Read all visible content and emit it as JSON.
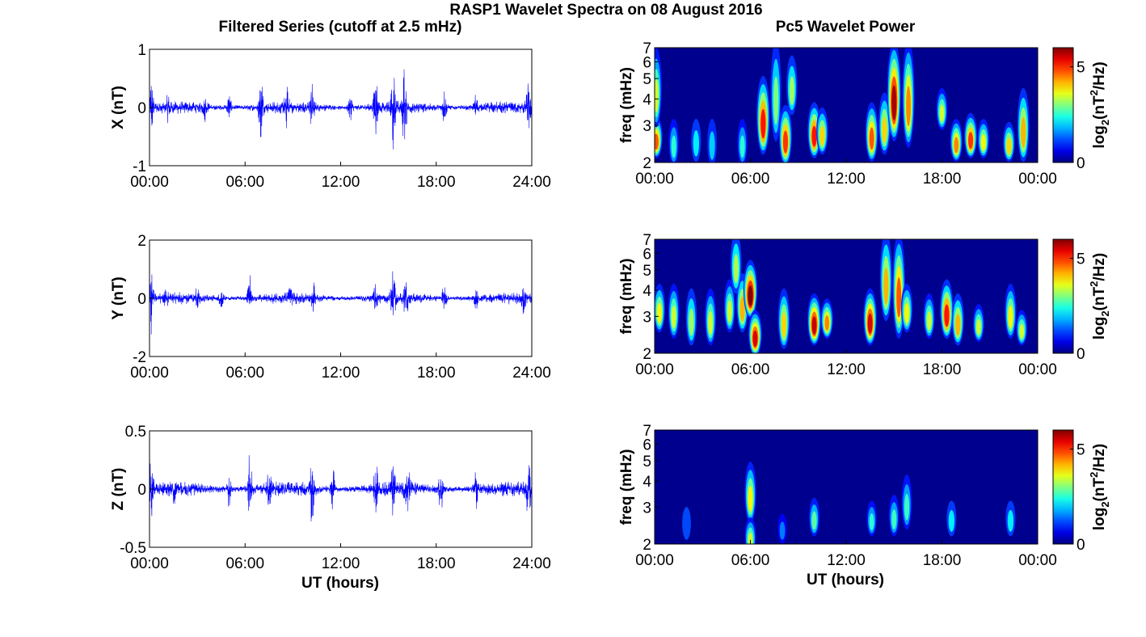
{
  "figure": {
    "title": "RASP1 Wavelet Spectra on 08 August 2016",
    "left_column_title": "Filtered Series (cutoff at 2.5 mHz)",
    "right_column_title": "Pc5 Wavelet Power",
    "xlabel": "UT (hours)"
  },
  "colors": {
    "trace": "#0000ff",
    "spectrogram_background": "#00008f",
    "axis": "#000000"
  },
  "chart_data": [
    {
      "type": "line",
      "panel": "X series",
      "ylabel": "X (nT)",
      "ylim": [
        -1,
        1
      ],
      "yticks": [
        "1",
        "0",
        "-1"
      ],
      "xlim": [
        0,
        24
      ],
      "xticks": [
        "00:00",
        "06:00",
        "12:00",
        "18:00",
        "24:00"
      ],
      "baseline_amplitude": 0.1,
      "bursts": [
        {
          "t": 0.1,
          "amp": 0.55
        },
        {
          "t": 1.2,
          "amp": 0.2
        },
        {
          "t": 3.5,
          "amp": 0.18
        },
        {
          "t": 5.0,
          "amp": 0.22
        },
        {
          "t": 7.0,
          "amp": 0.6
        },
        {
          "t": 8.6,
          "amp": 0.3
        },
        {
          "t": 10.2,
          "amp": 0.35
        },
        {
          "t": 12.6,
          "amp": 0.25
        },
        {
          "t": 14.2,
          "amp": 0.55
        },
        {
          "t": 15.3,
          "amp": 0.65
        },
        {
          "t": 16.0,
          "amp": 0.7
        },
        {
          "t": 18.5,
          "amp": 0.3
        },
        {
          "t": 20.5,
          "amp": 0.2
        },
        {
          "t": 23.8,
          "amp": 0.45
        }
      ]
    },
    {
      "type": "line",
      "panel": "Y series",
      "ylabel": "Y (nT)",
      "ylim": [
        -2,
        2
      ],
      "yticks": [
        "2",
        "0",
        "-2"
      ],
      "xlim": [
        0,
        24
      ],
      "xticks": [
        "00:00",
        "06:00",
        "12:00",
        "18:00",
        "24:00"
      ],
      "baseline_amplitude": 0.18,
      "bursts": [
        {
          "t": 0.1,
          "amp": 1.1
        },
        {
          "t": 1.0,
          "amp": 0.35
        },
        {
          "t": 3.0,
          "amp": 0.3
        },
        {
          "t": 4.5,
          "amp": 0.35
        },
        {
          "t": 6.3,
          "amp": 0.8
        },
        {
          "t": 8.8,
          "amp": 0.3
        },
        {
          "t": 10.3,
          "amp": 0.45
        },
        {
          "t": 14.2,
          "amp": 0.5
        },
        {
          "t": 15.3,
          "amp": 0.9
        },
        {
          "t": 16.1,
          "amp": 0.7
        },
        {
          "t": 18.5,
          "amp": 0.5
        },
        {
          "t": 20.5,
          "amp": 0.3
        },
        {
          "t": 23.5,
          "amp": 0.4
        }
      ]
    },
    {
      "type": "line",
      "panel": "Z series",
      "ylabel": "Z (nT)",
      "ylim": [
        -0.5,
        0.5
      ],
      "yticks": [
        "0.5",
        "0",
        "-0.5"
      ],
      "xlim": [
        0,
        24
      ],
      "xticks": [
        "00:00",
        "06:00",
        "12:00",
        "18:00",
        "24:00"
      ],
      "baseline_amplitude": 0.06,
      "bursts": [
        {
          "t": 0.1,
          "amp": 0.33
        },
        {
          "t": 1.5,
          "amp": 0.1
        },
        {
          "t": 5.0,
          "amp": 0.15
        },
        {
          "t": 6.3,
          "amp": 0.32
        },
        {
          "t": 7.5,
          "amp": 0.2
        },
        {
          "t": 10.2,
          "amp": 0.3
        },
        {
          "t": 11.5,
          "amp": 0.18
        },
        {
          "t": 14.2,
          "amp": 0.22
        },
        {
          "t": 15.3,
          "amp": 0.22
        },
        {
          "t": 16.2,
          "amp": 0.25
        },
        {
          "t": 18.3,
          "amp": 0.2
        },
        {
          "t": 20.5,
          "amp": 0.15
        },
        {
          "t": 23.8,
          "amp": 0.3
        }
      ]
    },
    {
      "type": "heatmap",
      "panel": "X wavelet power",
      "ylabel": "freq (mHz)",
      "y_scale": "log",
      "ylim": [
        2,
        7
      ],
      "yticks": [
        "2",
        "3",
        "4",
        "5",
        "6",
        "7"
      ],
      "xlim": [
        0,
        24
      ],
      "xticks": [
        "00:00",
        "06:00",
        "12:00",
        "18:00",
        "00:00"
      ],
      "colorbar_label": "log2(nT^2/Hz)",
      "color_range": [
        0,
        6
      ],
      "colorbar_ticks": [
        "0",
        "5"
      ],
      "blobs": [
        {
          "t": 0.1,
          "f": 2.5,
          "p": 4.8,
          "f_top": 3.1
        },
        {
          "t": 0.1,
          "f": 3.5,
          "p": 3.5,
          "f_top": 6.5
        },
        {
          "t": 1.2,
          "f": 2.3,
          "p": 2.5,
          "f_top": 3.0
        },
        {
          "t": 2.6,
          "f": 2.4,
          "p": 2.2,
          "f_top": 3.0
        },
        {
          "t": 3.6,
          "f": 2.3,
          "p": 2.0,
          "f_top": 3.0
        },
        {
          "t": 5.5,
          "f": 2.3,
          "p": 2.5,
          "f_top": 3.0
        },
        {
          "t": 6.8,
          "f": 2.6,
          "p": 5.2,
          "f_top": 4.8
        },
        {
          "t": 7.6,
          "f": 3.0,
          "p": 3.0,
          "f_top": 7.0
        },
        {
          "t": 8.2,
          "f": 2.3,
          "p": 5.0,
          "f_top": 3.5
        },
        {
          "t": 8.6,
          "f": 4.0,
          "p": 3.2,
          "f_top": 6.0
        },
        {
          "t": 10.0,
          "f": 2.5,
          "p": 5.2,
          "f_top": 3.6
        },
        {
          "t": 10.5,
          "f": 2.6,
          "p": 4.0,
          "f_top": 3.4
        },
        {
          "t": 13.6,
          "f": 2.4,
          "p": 4.8,
          "f_top": 3.6
        },
        {
          "t": 14.4,
          "f": 2.6,
          "p": 4.0,
          "f_top": 4.0
        },
        {
          "t": 15.0,
          "f": 3.0,
          "p": 5.8,
          "f_top": 7.0
        },
        {
          "t": 15.9,
          "f": 2.8,
          "p": 4.5,
          "f_top": 7.0
        },
        {
          "t": 18.0,
          "f": 3.4,
          "p": 3.5,
          "f_top": 4.2
        },
        {
          "t": 18.9,
          "f": 2.4,
          "p": 4.5,
          "f_top": 3.0
        },
        {
          "t": 19.8,
          "f": 2.5,
          "p": 5.0,
          "f_top": 3.2
        },
        {
          "t": 20.6,
          "f": 2.5,
          "p": 3.8,
          "f_top": 3.0
        },
        {
          "t": 22.2,
          "f": 2.4,
          "p": 4.0,
          "f_top": 2.9
        },
        {
          "t": 23.1,
          "f": 2.4,
          "p": 4.2,
          "f_top": 4.2
        }
      ]
    },
    {
      "type": "heatmap",
      "panel": "Y wavelet power",
      "ylabel": "freq (mHz)",
      "y_scale": "log",
      "ylim": [
        2,
        7
      ],
      "yticks": [
        "2",
        "3",
        "4",
        "5",
        "6",
        "7"
      ],
      "xlim": [
        0,
        24
      ],
      "xticks": [
        "00:00",
        "06:00",
        "12:00",
        "18:00",
        "00:00"
      ],
      "colorbar_label": "log2(nT^2/Hz)",
      "color_range": [
        0,
        6
      ],
      "colorbar_ticks": [
        "0",
        "5"
      ],
      "blobs": [
        {
          "t": 0.3,
          "f": 3.0,
          "p": 3.8,
          "f_top": 4.0
        },
        {
          "t": 1.2,
          "f": 2.8,
          "p": 3.5,
          "f_top": 4.0
        },
        {
          "t": 2.3,
          "f": 2.6,
          "p": 3.2,
          "f_top": 3.8
        },
        {
          "t": 3.5,
          "f": 2.6,
          "p": 3.5,
          "f_top": 3.8
        },
        {
          "t": 4.7,
          "f": 3.0,
          "p": 3.5,
          "f_top": 4.2
        },
        {
          "t": 5.5,
          "f": 3.0,
          "p": 4.2,
          "f_top": 4.5
        },
        {
          "t": 6.0,
          "f": 3.5,
          "p": 6.0,
          "f_top": 5.2
        },
        {
          "t": 6.3,
          "f": 2.3,
          "p": 5.5,
          "f_top": 3.0
        },
        {
          "t": 5.1,
          "f": 4.6,
          "p": 3.3,
          "f_top": 7.0
        },
        {
          "t": 8.1,
          "f": 2.5,
          "p": 4.0,
          "f_top": 3.8
        },
        {
          "t": 10.0,
          "f": 2.6,
          "p": 5.6,
          "f_top": 3.6
        },
        {
          "t": 10.8,
          "f": 2.8,
          "p": 4.5,
          "f_top": 3.4
        },
        {
          "t": 13.5,
          "f": 2.6,
          "p": 5.5,
          "f_top": 3.8
        },
        {
          "t": 14.5,
          "f": 3.4,
          "p": 4.2,
          "f_top": 7.0
        },
        {
          "t": 15.3,
          "f": 2.8,
          "p": 4.8,
          "f_top": 7.0
        },
        {
          "t": 15.8,
          "f": 3.0,
          "p": 3.8,
          "f_top": 4.0
        },
        {
          "t": 17.2,
          "f": 2.8,
          "p": 3.5,
          "f_top": 3.6
        },
        {
          "t": 18.3,
          "f": 2.8,
          "p": 5.2,
          "f_top": 4.2
        },
        {
          "t": 19.0,
          "f": 2.6,
          "p": 4.2,
          "f_top": 3.6
        },
        {
          "t": 20.3,
          "f": 2.7,
          "p": 3.5,
          "f_top": 3.2
        },
        {
          "t": 22.3,
          "f": 2.8,
          "p": 3.8,
          "f_top": 4.0
        },
        {
          "t": 23.0,
          "f": 2.6,
          "p": 3.5,
          "f_top": 3.0
        }
      ]
    },
    {
      "type": "heatmap",
      "panel": "Z wavelet power",
      "ylabel": "freq (mHz)",
      "y_scale": "log",
      "ylim": [
        2,
        7
      ],
      "yticks": [
        "2",
        "3",
        "4",
        "5",
        "6",
        "7"
      ],
      "xlim": [
        0,
        24
      ],
      "xticks": [
        "00:00",
        "06:00",
        "12:00",
        "18:00",
        "00:00"
      ],
      "colorbar_label": "log2(nT^2/Hz)",
      "color_range": [
        0,
        6
      ],
      "colorbar_ticks": [
        "0",
        "5"
      ],
      "blobs": [
        {
          "t": 6.0,
          "f": 3.0,
          "p": 3.8,
          "f_top": 4.6
        },
        {
          "t": 6.0,
          "f": 2.1,
          "p": 3.5,
          "f_top": 2.5
        },
        {
          "t": 10.0,
          "f": 2.6,
          "p": 2.8,
          "f_top": 3.1
        },
        {
          "t": 13.6,
          "f": 2.6,
          "p": 2.5,
          "f_top": 3.0
        },
        {
          "t": 15.0,
          "f": 2.6,
          "p": 2.6,
          "f_top": 3.2
        },
        {
          "t": 15.8,
          "f": 2.8,
          "p": 2.6,
          "f_top": 4.0
        },
        {
          "t": 18.6,
          "f": 2.6,
          "p": 2.2,
          "f_top": 3.0
        },
        {
          "t": 22.3,
          "f": 2.6,
          "p": 2.2,
          "f_top": 3.0
        },
        {
          "t": 8.0,
          "f": 2.4,
          "p": 1.5,
          "f_top": 2.6
        },
        {
          "t": 2.0,
          "f": 2.5,
          "p": 1.2,
          "f_top": 2.8
        }
      ]
    }
  ]
}
